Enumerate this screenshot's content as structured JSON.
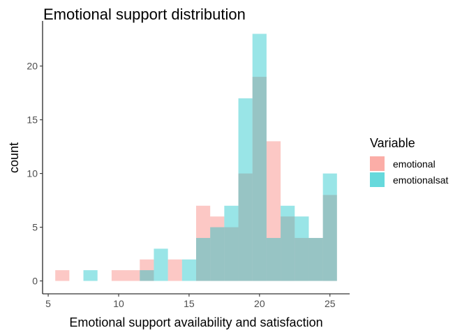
{
  "chart_data": {
    "type": "histogram",
    "title": "Emotional support distribution",
    "xlabel": "Emotional support availability and satisfaction",
    "ylabel": "count",
    "xlim": [
      4.6,
      26.4
    ],
    "ylim": [
      -1.2,
      24.2
    ],
    "x_ticks": [
      5,
      10,
      15,
      20,
      25
    ],
    "y_ticks": [
      0,
      5,
      10,
      15,
      20
    ],
    "bin_width": 1,
    "bin_starts": [
      5.5,
      6.5,
      7.5,
      8.5,
      9.5,
      10.5,
      11.5,
      12.5,
      13.5,
      14.5,
      15.5,
      16.5,
      17.5,
      18.5,
      19.5,
      20.5,
      21.5,
      22.5,
      23.5,
      24.5
    ],
    "series": [
      {
        "name": "emotional",
        "color": "#F8766D",
        "opacity": 0.4,
        "values": [
          1,
          0,
          0,
          0,
          1,
          1,
          2,
          0,
          2,
          0,
          7,
          6,
          5,
          10,
          19,
          13,
          6,
          4,
          4,
          8
        ]
      },
      {
        "name": "emotionalsat",
        "color": "#00BFC4",
        "opacity": 0.4,
        "values": [
          0,
          0,
          1,
          0,
          0,
          0,
          1,
          3,
          0,
          2,
          4,
          5,
          7,
          17,
          23,
          4,
          7,
          6,
          4,
          10
        ]
      }
    ],
    "legend": {
      "title": "Variable",
      "position": "right"
    },
    "grid": false
  }
}
